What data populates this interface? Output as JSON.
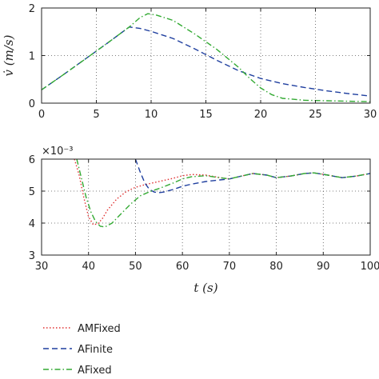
{
  "chart_data": [
    {
      "type": "line",
      "ylabel": "v̇ (m/s)",
      "xlabel": "",
      "xlim": [
        0,
        30
      ],
      "ylim": [
        0,
        2
      ],
      "xticks": [
        "0",
        "5",
        "10",
        "15",
        "20",
        "25",
        "30"
      ],
      "yticks": [
        "0",
        "1",
        "2"
      ],
      "grid": true,
      "series": [
        {
          "name": "AFinite",
          "color": "#1f3f9f",
          "dash": "dashed",
          "x": [
            0,
            2,
            4,
            6,
            8,
            9,
            10,
            12,
            14,
            16,
            18,
            20,
            22,
            24,
            26,
            28,
            30
          ],
          "y": [
            0.28,
            0.6,
            0.93,
            1.26,
            1.6,
            1.57,
            1.51,
            1.36,
            1.14,
            0.9,
            0.68,
            0.52,
            0.41,
            0.33,
            0.26,
            0.2,
            0.15
          ]
        },
        {
          "name": "AFixed",
          "color": "#33aa33",
          "dash": "dashdot",
          "x": [
            0,
            2,
            4,
            6,
            8,
            9,
            9.7,
            10.5,
            12,
            14,
            16,
            18,
            19,
            20,
            21,
            22,
            24,
            26,
            28,
            30
          ],
          "y": [
            0.28,
            0.6,
            0.93,
            1.26,
            1.6,
            1.8,
            1.88,
            1.85,
            1.74,
            1.45,
            1.13,
            0.75,
            0.52,
            0.32,
            0.18,
            0.1,
            0.06,
            0.05,
            0.04,
            0.03
          ]
        }
      ]
    },
    {
      "type": "line",
      "ylabel": "",
      "xlabel": "t (s)",
      "scale_label": "×10⁻³",
      "xlim": [
        30,
        100
      ],
      "ylim": [
        3,
        6
      ],
      "xticks": [
        "30",
        "40",
        "50",
        "60",
        "70",
        "80",
        "90",
        "100"
      ],
      "yticks": [
        "3",
        "4",
        "5",
        "6"
      ],
      "grid": true,
      "series": [
        {
          "name": "AMFixed",
          "color": "#e03030",
          "dash": "dotted",
          "x": [
            37,
            38,
            39,
            40,
            41,
            42,
            43,
            44,
            46,
            48,
            50,
            52,
            55,
            58,
            60,
            62,
            65,
            68,
            70,
            72,
            75,
            78,
            80,
            83,
            86,
            88,
            91,
            94,
            97,
            100
          ],
          "y": [
            6.0,
            5.5,
            4.8,
            4.2,
            3.95,
            3.98,
            4.15,
            4.4,
            4.75,
            4.98,
            5.12,
            5.2,
            5.3,
            5.4,
            5.48,
            5.52,
            5.5,
            5.42,
            5.38,
            5.45,
            5.55,
            5.5,
            5.42,
            5.47,
            5.55,
            5.57,
            5.5,
            5.42,
            5.47,
            5.55
          ]
        },
        {
          "name": "AFinite",
          "color": "#1f3f9f",
          "dash": "dashed",
          "x": [
            50,
            51,
            52,
            53,
            54,
            55,
            56,
            58,
            60,
            62,
            65,
            68,
            70,
            72,
            75,
            78,
            80,
            83,
            86,
            88,
            91,
            94,
            97,
            100
          ],
          "y": [
            6.0,
            5.6,
            5.25,
            5.05,
            4.97,
            4.95,
            4.97,
            5.05,
            5.15,
            5.22,
            5.3,
            5.35,
            5.38,
            5.45,
            5.55,
            5.5,
            5.42,
            5.47,
            5.55,
            5.57,
            5.5,
            5.42,
            5.47,
            5.55
          ]
        },
        {
          "name": "AFixed",
          "color": "#33aa33",
          "dash": "dashdot",
          "x": [
            37.5,
            38.5,
            39.5,
            40.5,
            41.5,
            42.5,
            43.5,
            45,
            47,
            49,
            51,
            53,
            55,
            58,
            60,
            62,
            65,
            68,
            70,
            72,
            75,
            78,
            80,
            83,
            86,
            88,
            91,
            94,
            97,
            100
          ],
          "y": [
            6.0,
            5.4,
            4.8,
            4.35,
            4.05,
            3.9,
            3.88,
            4.0,
            4.3,
            4.6,
            4.85,
            4.98,
            5.08,
            5.25,
            5.38,
            5.45,
            5.48,
            5.42,
            5.38,
            5.45,
            5.55,
            5.5,
            5.42,
            5.47,
            5.55,
            5.57,
            5.5,
            5.42,
            5.47,
            5.55
          ]
        }
      ]
    }
  ],
  "legend": {
    "placement": "bottom-left",
    "items": [
      {
        "label": "AMFixed",
        "color": "#e03030",
        "dash": "dotted"
      },
      {
        "label": "AFinite",
        "color": "#1f3f9f",
        "dash": "dashed"
      },
      {
        "label": "AFixed",
        "color": "#33aa33",
        "dash": "dashdot"
      }
    ]
  }
}
